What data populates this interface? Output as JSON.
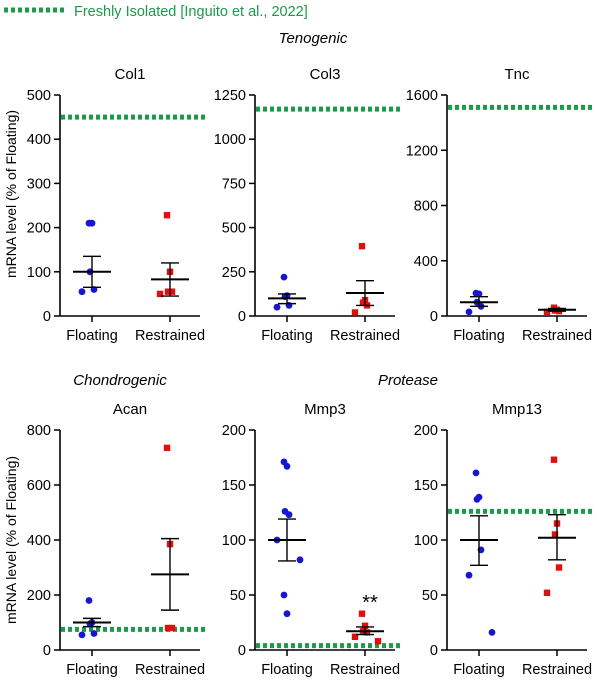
{
  "legend": {
    "label": "Freshly Isolated [Inguito et al., 2022]",
    "color": "#1a9a4a"
  },
  "groups": {
    "tenogenic": "Tenogenic",
    "chondrogenic": "Chondrogenic",
    "protease": "Protease"
  },
  "ylabel": "mRNA level (% of Floating)",
  "colors": {
    "floating": "#1616d0",
    "restrained": "#e01010",
    "reference": "#1a9a4a"
  },
  "chart_data": [
    {
      "type": "scatter",
      "title": "Col1",
      "ylim": [
        0,
        500
      ],
      "yticks": [
        0,
        100,
        200,
        300,
        400,
        500
      ],
      "categories": [
        "Floating",
        "Restrained"
      ],
      "reference": 450,
      "series": [
        {
          "name": "Floating",
          "values": [
            210,
            210,
            100,
            60,
            55
          ],
          "mean": 100,
          "sem_low": 65,
          "sem_high": 135
        },
        {
          "name": "Restrained",
          "values": [
            228,
            100,
            55,
            55,
            50
          ],
          "mean": 83,
          "sem_low": 45,
          "sem_high": 120
        }
      ]
    },
    {
      "type": "scatter",
      "title": "Col3",
      "ylim": [
        0,
        1250
      ],
      "yticks": [
        0,
        250,
        500,
        750,
        1000,
        1250
      ],
      "categories": [
        "Floating",
        "Restrained"
      ],
      "reference": 1170,
      "series": [
        {
          "name": "Floating",
          "values": [
            220,
            115,
            110,
            60,
            50
          ],
          "mean": 100,
          "sem_low": 70,
          "sem_high": 125
        },
        {
          "name": "Restrained",
          "values": [
            395,
            90,
            75,
            60,
            20
          ],
          "mean": 130,
          "sem_low": 60,
          "sem_high": 200
        }
      ]
    },
    {
      "type": "scatter",
      "title": "Tnc",
      "ylim": [
        0,
        1600
      ],
      "yticks": [
        0,
        400,
        800,
        1200,
        1600
      ],
      "categories": [
        "Floating",
        "Restrained"
      ],
      "reference": 1510,
      "series": [
        {
          "name": "Floating",
          "values": [
            165,
            160,
            100,
            70,
            30
          ],
          "mean": 100,
          "sem_low": 70,
          "sem_high": 140
        },
        {
          "name": "Restrained",
          "values": [
            60,
            45,
            40,
            35,
            30
          ],
          "mean": 45,
          "sem_low": 35,
          "sem_high": 55
        }
      ]
    },
    {
      "type": "scatter",
      "title": "Acan",
      "ylim": [
        0,
        800
      ],
      "yticks": [
        0,
        200,
        400,
        600,
        800
      ],
      "categories": [
        "Floating",
        "Restrained"
      ],
      "reference": 75,
      "series": [
        {
          "name": "Floating",
          "values": [
            180,
            100,
            95,
            60,
            55
          ],
          "mean": 100,
          "sem_low": 85,
          "sem_high": 115
        },
        {
          "name": "Restrained",
          "values": [
            735,
            385,
            80,
            80
          ],
          "mean": 275,
          "sem_low": 145,
          "sem_high": 405
        }
      ]
    },
    {
      "type": "scatter",
      "title": "Mmp3",
      "ylim": [
        0,
        200
      ],
      "yticks": [
        0,
        50,
        100,
        150,
        200
      ],
      "categories": [
        "Floating",
        "Restrained"
      ],
      "reference": 4,
      "annotation": "**",
      "series": [
        {
          "name": "Floating",
          "values": [
            171,
            167,
            126,
            123,
            100,
            82,
            50,
            33
          ],
          "mean": 100,
          "sem_low": 81,
          "sem_high": 119
        },
        {
          "name": "Restrained",
          "values": [
            33,
            22,
            17,
            16,
            12,
            8
          ],
          "mean": 17,
          "sem_low": 14,
          "sem_high": 21
        }
      ]
    },
    {
      "type": "scatter",
      "title": "Mmp13",
      "ylim": [
        0,
        200
      ],
      "yticks": [
        0,
        50,
        100,
        150,
        200
      ],
      "categories": [
        "Floating",
        "Restrained"
      ],
      "reference": 126,
      "series": [
        {
          "name": "Floating",
          "values": [
            161,
            139,
            137,
            91,
            68,
            16
          ],
          "mean": 100,
          "sem_low": 77,
          "sem_high": 122
        },
        {
          "name": "Restrained",
          "values": [
            173,
            115,
            105,
            75,
            52
          ],
          "mean": 102,
          "sem_low": 82,
          "sem_high": 123
        }
      ]
    }
  ]
}
